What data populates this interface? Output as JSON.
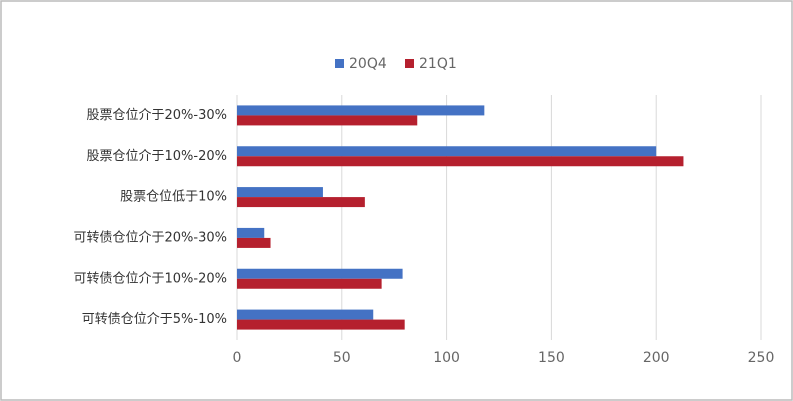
{
  "chart_data": {
    "type": "barh",
    "categories": [
      "股票仓位介于20%-30%",
      "股票仓位介于10%-20%",
      "股票仓位低于10%",
      "可转债仓位介于20%-30%",
      "可转债仓位介于10%-20%",
      "可转债仓位介于5%-10%"
    ],
    "series": [
      {
        "name": "20Q4",
        "color": "#4472c4",
        "values": [
          118,
          200,
          41,
          13,
          79,
          65
        ]
      },
      {
        "name": "21Q1",
        "color": "#b5202e",
        "values": [
          86,
          213,
          61,
          16,
          69,
          80
        ]
      }
    ],
    "xlim": [
      0,
      250
    ],
    "xticks": [
      0,
      50,
      100,
      150,
      200,
      250
    ],
    "grid": true,
    "legend": "top"
  }
}
